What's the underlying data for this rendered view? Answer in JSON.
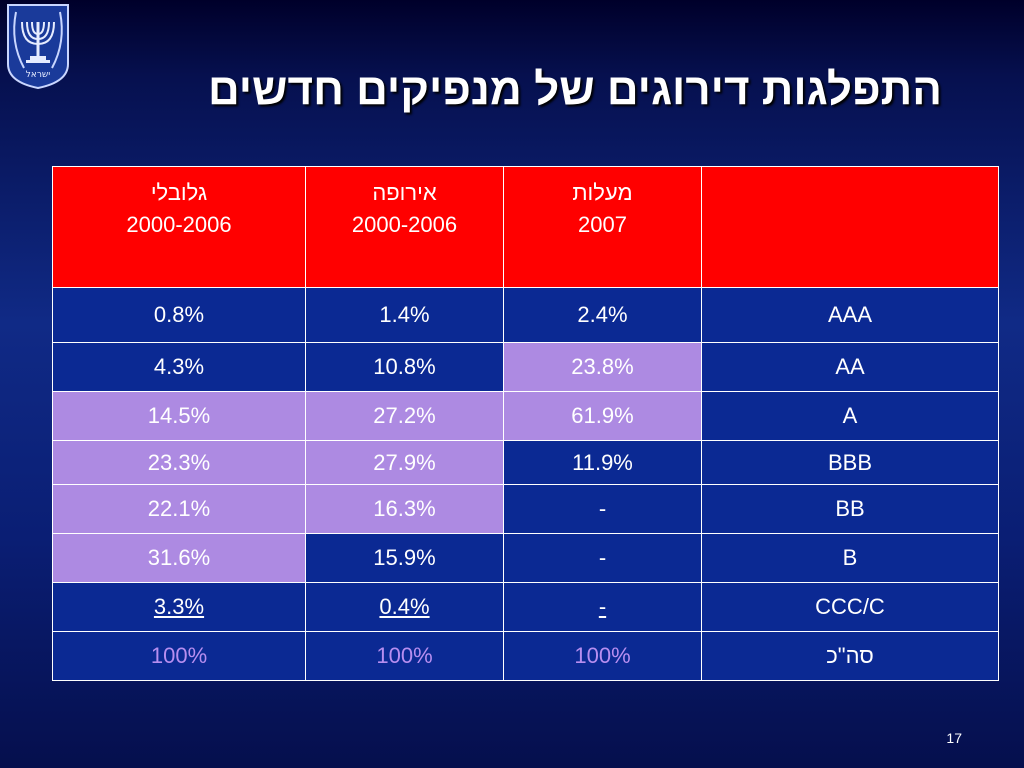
{
  "slide": {
    "title": "התפלגות דירוגים של מנפיקים חדשים",
    "page_number": "17",
    "emblem": "state-of-israel-emblem-icon",
    "emblem_text": "ישראל"
  },
  "table": {
    "headers": [
      {
        "line1": "גלובלי",
        "line2": "2000-2006"
      },
      {
        "line1": "אירופה",
        "line2": "2000-2006"
      },
      {
        "line1": "מעלות",
        "line2": "2007"
      },
      {
        "line1": "",
        "line2": ""
      }
    ],
    "rows": [
      {
        "global": "0.8%",
        "europe": "1.4%",
        "maalot": "2.4%",
        "rating": "AAA"
      },
      {
        "global": "4.3%",
        "europe": "10.8%",
        "maalot": "23.8%",
        "rating": "AA"
      },
      {
        "global": "14.5%",
        "europe": "27.2%",
        "maalot": "61.9%",
        "rating": "A"
      },
      {
        "global": "23.3%",
        "europe": "27.9%",
        "maalot": "11.9%",
        "rating": "BBB"
      },
      {
        "global": "22.1%",
        "europe": "16.3%",
        "maalot": "-",
        "rating": "BB"
      },
      {
        "global": "31.6%",
        "europe": "15.9%",
        "maalot": "-",
        "rating": "B"
      },
      {
        "global": "3.3%",
        "europe": "0.4%",
        "maalot": "-",
        "rating": "CCC/C"
      },
      {
        "global": "100%",
        "europe": "100%",
        "maalot": "100%",
        "rating": "סה\"כ"
      }
    ]
  },
  "colors": {
    "header_red": "#ff0000",
    "cell_blue": "#0b2993",
    "cell_lavender": "#ad8ae2",
    "total_text": "#b78ef0"
  }
}
